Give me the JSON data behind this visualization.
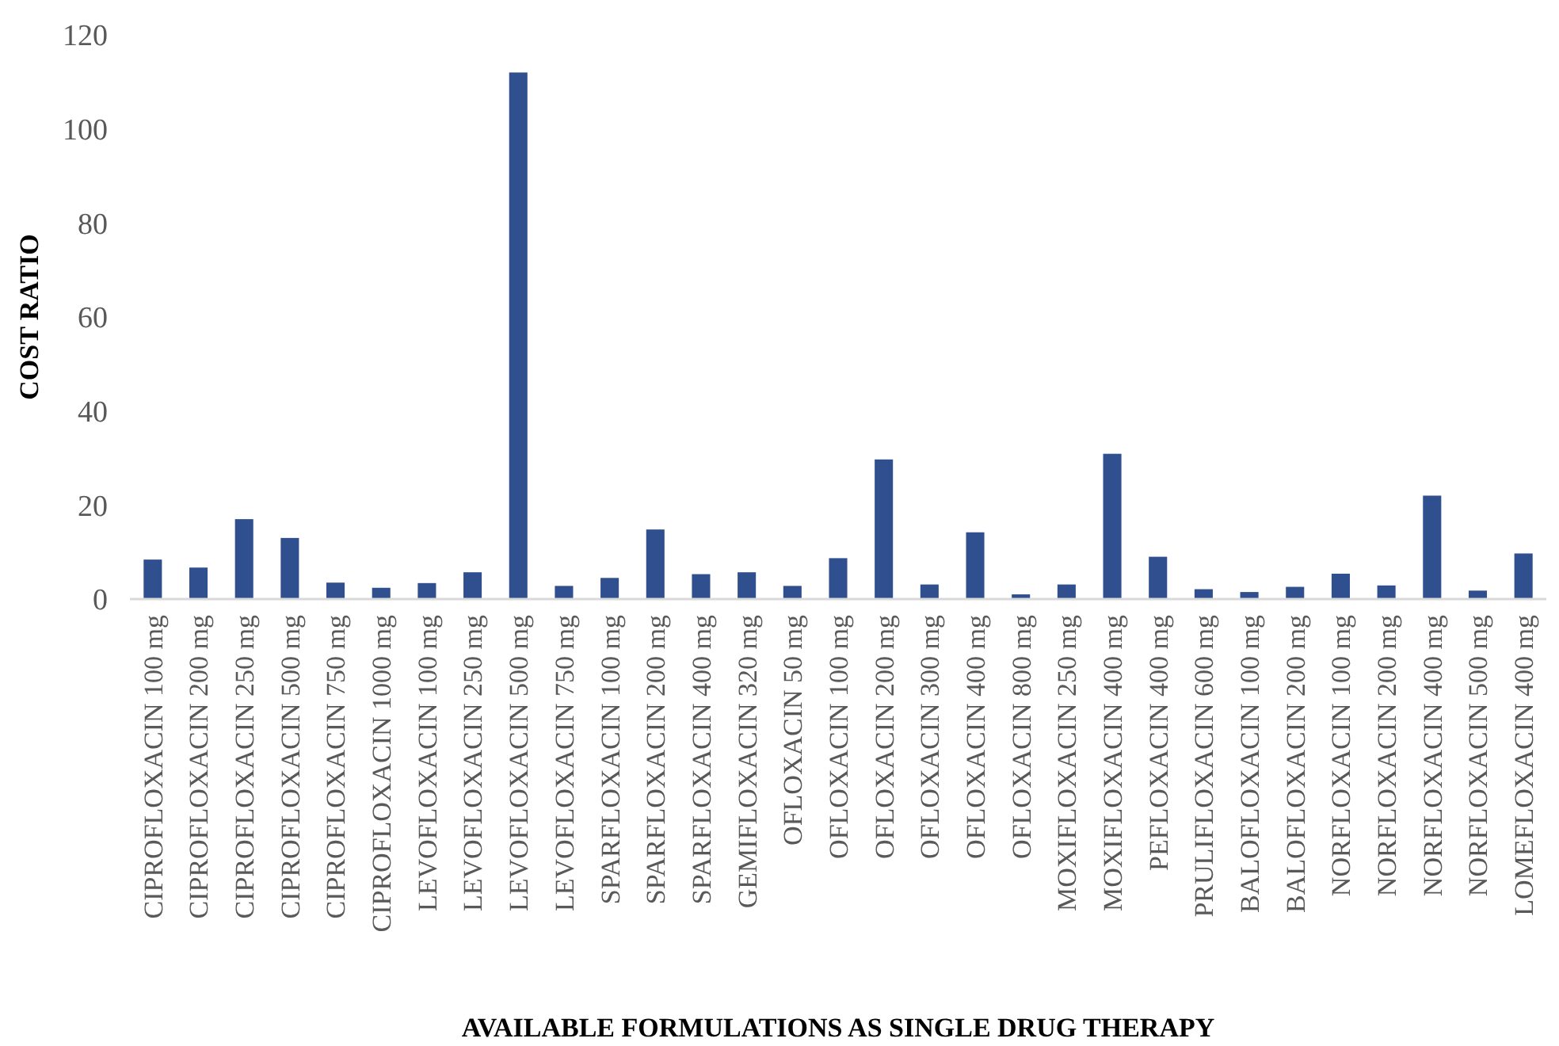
{
  "chart_data": {
    "type": "bar",
    "xlabel": "AVAILABLE FORMULATIONS AS SINGLE DRUG THERAPY",
    "ylabel": "COST RATIO",
    "categories": [
      "CIPROFLOXACIN 100 mg",
      "CIPROFLOXACIN 200 mg",
      "CIPROFLOXACIN 250 mg",
      "CIPROFLOXACIN 500 mg",
      "CIPROFLOXACIN 750 mg",
      "CIPROFLOXACIN 1000 mg",
      "LEVOFLOXACIN 100 mg",
      "LEVOFLOXACIN 250 mg",
      "LEVOFLOXACIN 500 mg",
      "LEVOFLOXACIN 750 mg",
      "SPARFLOXACIN 100 mg",
      "SPARFLOXACIN 200 mg",
      "SPARFLOXACIN 400 mg",
      "GEMIFLOXACIN 320 mg",
      "OFLOXACIN 50 mg",
      "OFLOXACIN 100 mg",
      "OFLOXACIN 200 mg",
      "OFLOXACIN 300 mg",
      "OFLOXACIN 400 mg",
      "OFLOXACIN 800 mg",
      "MOXIFLOXACIN 250 mg",
      "MOXIFLOXACIN 400 mg",
      "PEFLOXACIN 400 mg",
      "PRULIFLOXACIN 600 mg",
      "BALOFLOXACIN 100 mg",
      "BALOFLOXACIN 200 mg",
      "NORFLOXACIN 100 mg",
      "NORFLOXACIN 200 mg",
      "NORFLOXACIN 400 mg",
      "NORFLOXACIN 500 mg",
      "LOMEFLOXACIN 400 mg"
    ],
    "values": [
      8.4,
      6.7,
      17,
      13,
      3.5,
      2.4,
      3.4,
      5.7,
      112,
      2.8,
      4.5,
      14.8,
      5.3,
      5.7,
      2.8,
      8.7,
      29.7,
      3.1,
      14.2,
      1,
      3.1,
      30.9,
      9,
      2.1,
      1.5,
      2.6,
      5.4,
      2.9,
      22,
      1.8,
      9.7
    ],
    "color": "#2f4f8f",
    "ylim": [
      0,
      120
    ],
    "yticks": [
      0,
      20,
      40,
      60,
      80,
      100,
      120
    ],
    "grid": false
  }
}
